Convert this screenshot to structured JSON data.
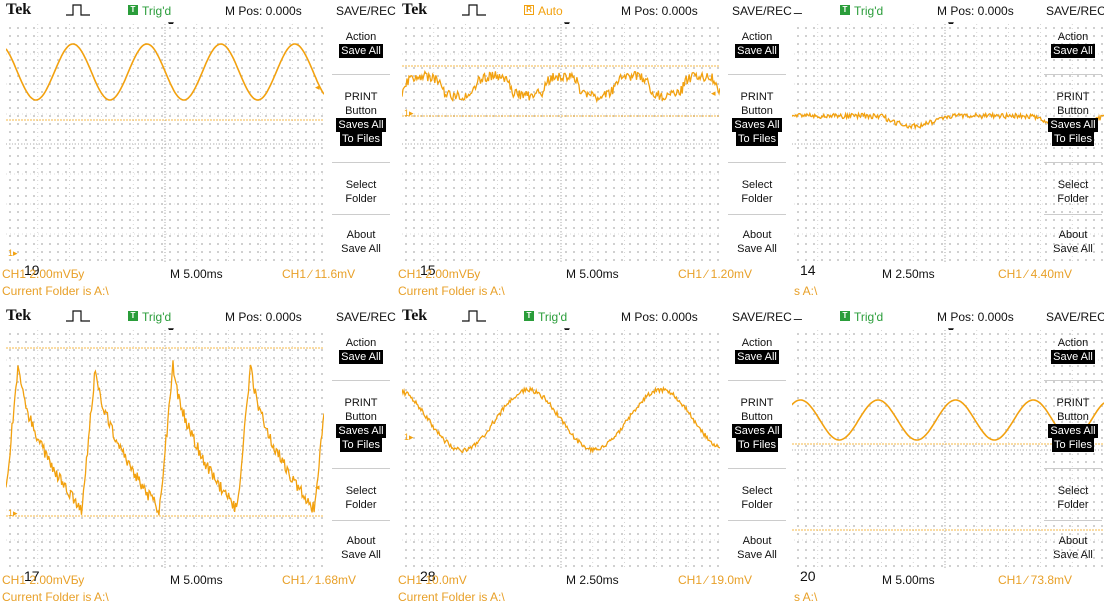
{
  "panels": [
    {
      "id": "p19",
      "brand": "Tek",
      "trig_status": "Trig'd",
      "trig_type": "trig",
      "m_pos": "M Pos: 0.000s",
      "menu_title": "SAVE/REC",
      "menu": {
        "action_label": "Action",
        "action_value": "Save All",
        "print_label1": "PRINT",
        "print_label2": "Button",
        "print_value1": "Saves All",
        "print_value2": "To Files",
        "folder1": "Select",
        "folder2": "Folder",
        "about1": "About",
        "about2": "Save All"
      },
      "number": "19",
      "ch1_scale": "CH1  2.00mVБу",
      "timebase": "M 5.00ms",
      "trigger": "CH1 ∕ 11.6mV",
      "folder_text": "Current Folder is A:\\"
    },
    {
      "id": "p15",
      "brand": "Tek",
      "trig_status": "Auto",
      "trig_type": "auto",
      "m_pos": "M Pos: 0.000s",
      "menu_title": "SAVE/REC",
      "menu": {
        "action_label": "Action",
        "action_value": "Save All",
        "print_label1": "PRINT",
        "print_label2": "Button",
        "print_value1": "Saves All",
        "print_value2": "To Files",
        "folder1": "Select",
        "folder2": "Folder",
        "about1": "About",
        "about2": "Save All"
      },
      "number": "15",
      "ch1_scale": "CH1  2.00mVБу",
      "timebase": "M 5.00ms",
      "trigger": "CH1 ∕ 1.20mV",
      "folder_text": "Current Folder is A:\\"
    },
    {
      "id": "p14",
      "brand": "",
      "trig_status": "Trig'd",
      "trig_type": "trig",
      "m_pos": "M Pos: 0.000s",
      "menu_title": "SAVE/REC",
      "menu": {
        "action_label": "Action",
        "action_value": "Save All",
        "print_label1": "PRINT",
        "print_label2": "Button",
        "print_value1": "Saves All",
        "print_value2": "To Files",
        "folder1": "Select",
        "folder2": "Folder",
        "about1": "About",
        "about2": "Save All"
      },
      "number": "14",
      "ch1_scale": "",
      "timebase": "M 2.50ms",
      "trigger": "CH1 ∕ 4.40mV",
      "folder_text": "s A:\\"
    },
    {
      "id": "p17",
      "brand": "Tek",
      "trig_status": "Trig'd",
      "trig_type": "trig",
      "m_pos": "M Pos: 0.000s",
      "menu_title": "SAVE/REC",
      "menu": {
        "action_label": "Action",
        "action_value": "Save All",
        "print_label1": "PRINT",
        "print_label2": "Button",
        "print_value1": "Saves All",
        "print_value2": "To Files",
        "folder1": "Select",
        "folder2": "Folder",
        "about1": "About",
        "about2": "Save All"
      },
      "number": "17",
      "ch1_scale": "CH1  2.00mVБу",
      "timebase": "M 5.00ms",
      "trigger": "CH1 ∕ 1.68mV",
      "folder_text": "Current Folder is A:\\"
    },
    {
      "id": "p28",
      "brand": "Tek",
      "trig_status": "Trig'd",
      "trig_type": "trig",
      "m_pos": "M Pos: 0.000s",
      "menu_title": "SAVE/REC",
      "menu": {
        "action_label": "Action",
        "action_value": "Save All",
        "print_label1": "PRINT",
        "print_label2": "Button",
        "print_value1": "Saves All",
        "print_value2": "To Files",
        "folder1": "Select",
        "folder2": "Folder",
        "about1": "About",
        "about2": "Save All"
      },
      "number": "28",
      "ch1_scale": "CH1  10.0mV",
      "timebase": "M 2.50ms",
      "trigger": "CH1 ∕ 19.0mV",
      "folder_text": "Current Folder is A:\\"
    },
    {
      "id": "p20",
      "brand": "",
      "trig_status": "Trig'd",
      "trig_type": "trig",
      "m_pos": "M Pos: 0.000s",
      "menu_title": "SAVE/REC",
      "menu": {
        "action_label": "Action",
        "action_value": "Save All",
        "print_label1": "PRINT",
        "print_label2": "Button",
        "print_value1": "Saves All",
        "print_value2": "To Files",
        "folder1": "Select",
        "folder2": "Folder",
        "about1": "About",
        "about2": "Save All"
      },
      "number": "20",
      "ch1_scale": "",
      "timebase": "M 5.00ms",
      "trigger": "CH1 ∕ 73.8mV",
      "folder_text": "s A:\\"
    }
  ],
  "colors": {
    "trace": "#f2a10f",
    "trig_green": "#2a9d3a",
    "text": "#111111"
  }
}
